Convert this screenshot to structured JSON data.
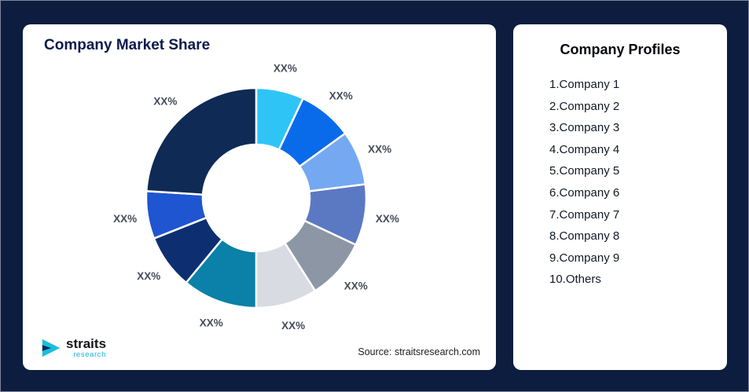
{
  "page": {
    "background_color": "#0d1d40"
  },
  "left_card": {
    "title": "Company Market Share",
    "source": "Source: straitsresearch.com",
    "logo": {
      "name": "straits",
      "sub": "research",
      "icon": "straits-arrow-icon",
      "accent_color": "#1bbde0"
    }
  },
  "right_card": {
    "title": "Company Profiles",
    "items": [
      "1.Company 1",
      "2.Company 2",
      "3.Company 3",
      "4.Company 4",
      "5.Company 5",
      "6.Company 6",
      "7.Company 7",
      "8.Company 8",
      "9.Company 9",
      "10.Others"
    ]
  },
  "chart_data": {
    "type": "pie",
    "subtype": "donut",
    "title": "Company Market Share",
    "value_labels_shown": "XX% placeholders (no numeric values printed on chart)",
    "start_angle_deg": -90,
    "direction": "clockwise",
    "segments": [
      {
        "name": "Company 1",
        "display_label": "XX%",
        "visual_fraction": 7,
        "color": "#2fc4f6"
      },
      {
        "name": "Company 2",
        "display_label": "XX%",
        "visual_fraction": 8,
        "color": "#0a6bea"
      },
      {
        "name": "Company 3",
        "display_label": "XX%",
        "visual_fraction": 8,
        "color": "#74a9f1"
      },
      {
        "name": "Company 4",
        "display_label": "XX%",
        "visual_fraction": 9,
        "color": "#5b79c2"
      },
      {
        "name": "Company 5",
        "display_label": "XX%",
        "visual_fraction": 9,
        "color": "#8d96a5"
      },
      {
        "name": "Company 6",
        "display_label": "XX%",
        "visual_fraction": 9,
        "color": "#d8dce2"
      },
      {
        "name": "Company 7",
        "display_label": "XX%",
        "visual_fraction": 11,
        "color": "#0b80a8"
      },
      {
        "name": "Company 8",
        "display_label": "XX%",
        "visual_fraction": 8,
        "color": "#0d2f71"
      },
      {
        "name": "Company 9",
        "display_label": "XX%",
        "visual_fraction": 7,
        "color": "#1f55d1"
      },
      {
        "name": "Others",
        "display_label": "XX%",
        "visual_fraction": 24,
        "color": "#0e2a55"
      }
    ]
  }
}
